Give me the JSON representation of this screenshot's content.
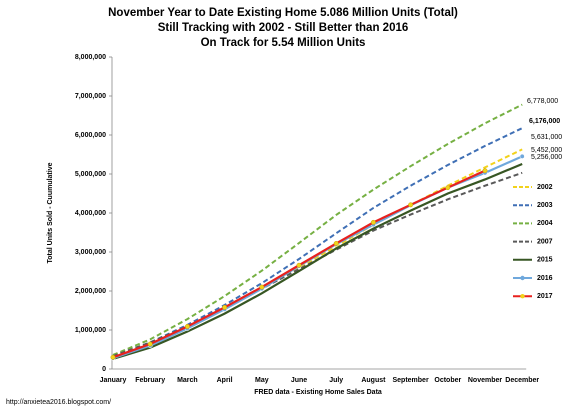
{
  "chart_data": {
    "type": "line",
    "title": [
      "November  Year to Date Existing Home 5.086 Million Units (Total)",
      "Still Tracking with 2002 - Still Better than 2016",
      "On Track for 5.54 Million Units"
    ],
    "ylabel": "Total Units Sold - Cuumulative",
    "xlabel": "FRED data - Existing Home Sales Data",
    "source": "http://anxietea2016.blogspot.com/",
    "categories": [
      "January",
      "February",
      "March",
      "April",
      "May",
      "June",
      "July",
      "August",
      "September",
      "October",
      "November",
      "December"
    ],
    "ylim": [
      0,
      8000000
    ],
    "yticks": [
      0,
      {
        "value": 1000000,
        "label": "1,000,000"
      },
      {
        "value": 2000000,
        "label": "2,000,000"
      },
      {
        "value": 3000000,
        "label": "3,000,000"
      },
      {
        "value": 4000000,
        "label": "4,000,000"
      },
      {
        "value": 5000000,
        "label": "5,000,000"
      },
      {
        "value": 6000000,
        "label": "6,000,000"
      },
      {
        "value": 7000000,
        "label": "7,000,000"
      },
      {
        "value": 8000000,
        "label": "8,000,000"
      }
    ],
    "series": [
      {
        "name": "2002",
        "color": "#f2d21b",
        "dash": true,
        "values": [
          330000,
          660000,
          1080000,
          1550000,
          2060000,
          2600000,
          3150000,
          3700000,
          4200000,
          4700000,
          5170000,
          5631000
        ]
      },
      {
        "name": "2003",
        "color": "#3f6fb5",
        "dash": true,
        "values": [
          330000,
          680000,
          1130000,
          1640000,
          2200000,
          2820000,
          3480000,
          4130000,
          4700000,
          5230000,
          5720000,
          6176000
        ]
      },
      {
        "name": "2004",
        "color": "#76b043",
        "dash": true,
        "values": [
          360000,
          760000,
          1280000,
          1870000,
          2520000,
          3230000,
          3950000,
          4600000,
          5200000,
          5770000,
          6300000,
          6778000
        ]
      },
      {
        "name": "2007",
        "color": "#595959",
        "dash": true,
        "values": [
          330000,
          680000,
          1090000,
          1550000,
          2060000,
          2560000,
          3060000,
          3550000,
          3960000,
          4350000,
          4700000,
          5030000
        ]
      },
      {
        "name": "2015",
        "color": "#375623",
        "dash": false,
        "values": [
          260000,
          550000,
          960000,
          1420000,
          1940000,
          2510000,
          3090000,
          3600000,
          4060000,
          4500000,
          4860000,
          5256000
        ]
      },
      {
        "name": "2016",
        "color": "#6fa8dc",
        "dash": false,
        "marker_color": "#6fa8dc",
        "values": [
          280000,
          600000,
          1040000,
          1530000,
          2060000,
          2640000,
          3200000,
          3700000,
          4200000,
          4650000,
          5030000,
          5452000
        ]
      },
      {
        "name": "2017",
        "color": "#e8211d",
        "dash": false,
        "marker_color": "#f2d21b",
        "values": [
          300000,
          640000,
          1090000,
          1580000,
          2100000,
          2660000,
          3220000,
          3760000,
          4210000,
          4650000,
          5086000,
          null
        ]
      }
    ],
    "annotations": [
      {
        "text": "6,778,000",
        "color": "#404040"
      },
      {
        "text": "6,176,000",
        "color": "#000000"
      },
      {
        "text": "5,631,000",
        "color": "#000000"
      },
      {
        "text": "5,452,000",
        "color": "#000000"
      },
      {
        "text": "5,256,000",
        "color": "#2e75b6"
      }
    ]
  }
}
